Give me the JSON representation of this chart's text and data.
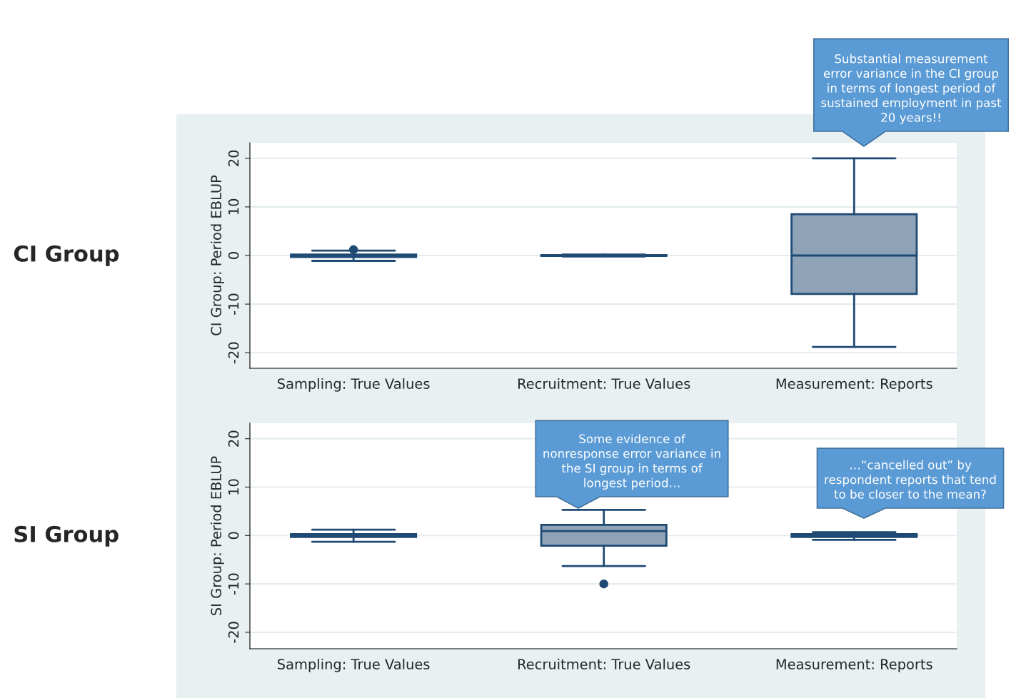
{
  "chart_data": [
    {
      "type": "box",
      "ylabel": "CI Group: Period EBLUP",
      "categories": [
        "Sampling: True Values",
        "Recruitment: True Values",
        "Measurement: Reports"
      ],
      "ylim": [
        -23.2,
        23.2
      ],
      "yticks": [
        -20,
        -10,
        0,
        10,
        20
      ],
      "grid": "y",
      "series": [
        {
          "color": "#8ea3b7",
          "boxes": [
            {
              "low": -1.1,
              "q1": -0.3,
              "median": 0,
              "q3": 0.2,
              "high": 1,
              "outliers": [
                1.2
              ]
            },
            {
              "low": -0.2,
              "q1": -0.1,
              "median": 0,
              "q3": 0.1,
              "high": 0.2
            },
            {
              "low": -18.8,
              "q1": -7.9,
              "median": 0,
              "q3": 8.5,
              "high": 20
            }
          ]
        }
      ],
      "annotations": [
        "CI Group",
        "Substantial measurement\nerror variance in the CI group\nin terms of longest period of\nsustained employment in past\n20 years!!"
      ]
    },
    {
      "type": "box",
      "ylabel": "SI Group: Period EBLUP",
      "categories": [
        "Sampling: True Values",
        "Recruitment: True Values",
        "Measurement: Reports"
      ],
      "ylim": [
        -23.4,
        23.2
      ],
      "yticks": [
        -20,
        -10,
        0,
        10,
        20
      ],
      "grid": "y",
      "series": [
        {
          "color": "#8ea3b7",
          "boxes": [
            {
              "low": -1.3,
              "q1": -0.3,
              "median": 0,
              "q3": 0.3,
              "high": 1.2
            },
            {
              "low": -6.3,
              "q1": -2.1,
              "median": 0.9,
              "q3": 2.2,
              "high": 5.3,
              "outliers": [
                -10
              ]
            },
            {
              "low": -0.9,
              "q1": -0.3,
              "median": 0,
              "q3": 0.3,
              "high": 0.7
            }
          ]
        }
      ],
      "annotations": [
        "SI Group",
        "Some evidence of\nnonresponse error variance in\nthe SI group in terms of\nlongest period…",
        "…“cancelled out” by\nrespondent reports that tend\nto be closer to the mean?"
      ]
    }
  ]
}
